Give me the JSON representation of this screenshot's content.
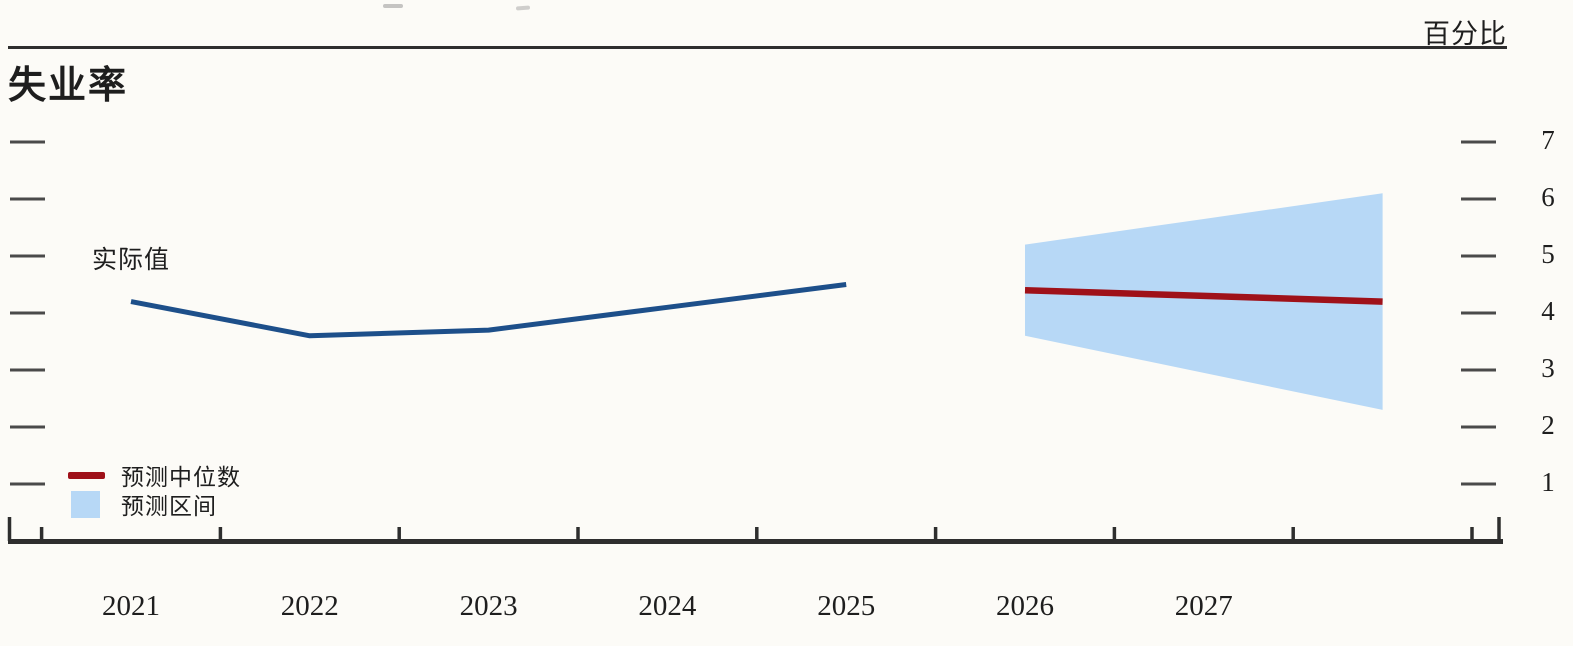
{
  "header": {
    "title": "失业率",
    "unit_label": "百分比"
  },
  "annotations": {
    "actual_label": "实际值"
  },
  "legend": {
    "median_label": "预测中位数",
    "range_label": "预测区间"
  },
  "colors": {
    "actual_line": "#1d4f8a",
    "median_line": "#9f1119",
    "range_fill": "#b7d8f6",
    "axis": "#2e2e2e",
    "tick": "#4a4a4a"
  },
  "chart_data": {
    "type": "line",
    "title": "失业率",
    "ylabel": "百分比",
    "x_labels": [
      "2021",
      "2022",
      "2023",
      "2024",
      "2025",
      "2026",
      "2027"
    ],
    "yticks": [
      1,
      2,
      3,
      4,
      5,
      6,
      7
    ],
    "ylim": [
      0,
      7.5
    ],
    "xlim": [
      2020.5,
      2028.5
    ],
    "grid": false,
    "legend_position": "bottom-left",
    "series": [
      {
        "name": "实际值",
        "kind": "line",
        "x": [
          2021,
          2022,
          2023,
          2024,
          2025
        ],
        "values": [
          4.2,
          3.6,
          3.7,
          4.1,
          4.5
        ]
      },
      {
        "name": "预测中位数",
        "kind": "line",
        "x": [
          2026,
          2027,
          2028
        ],
        "values": [
          4.4,
          4.3,
          4.2
        ]
      },
      {
        "name": "预测区间",
        "kind": "band",
        "x": [
          2026,
          2027,
          2028
        ],
        "upper": [
          5.2,
          5.65,
          6.1
        ],
        "lower": [
          3.6,
          2.95,
          2.3
        ]
      }
    ]
  }
}
